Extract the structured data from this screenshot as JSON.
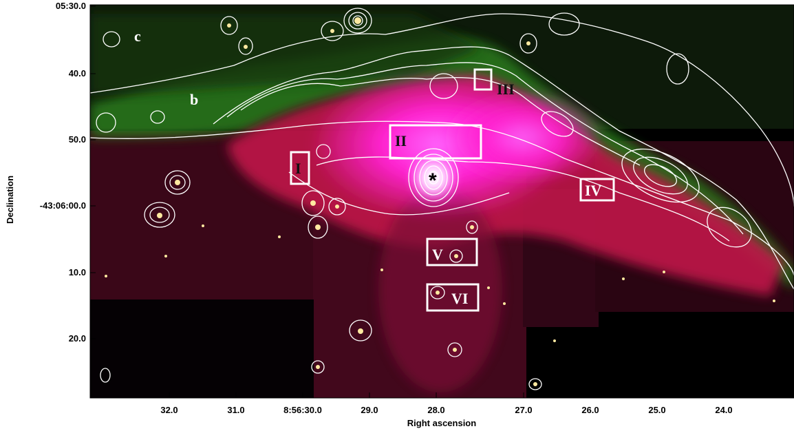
{
  "axes": {
    "xlabel": "Right ascension",
    "ylabel": "Declination",
    "x_ticks": [
      "32.0",
      "31.0",
      "8:56:30.0",
      "29.0",
      "28.0",
      "27.0",
      "26.0",
      "25.0",
      "24.0"
    ],
    "y_ticks": [
      "05:30.0",
      "40.0",
      "50.0",
      "-43:06:00.0",
      "10.0",
      "20.0"
    ]
  },
  "regions": [
    {
      "label": "I"
    },
    {
      "label": "II"
    },
    {
      "label": "III"
    },
    {
      "label": "IV"
    },
    {
      "label": "V"
    },
    {
      "label": "VI"
    }
  ],
  "features": {
    "b": "b",
    "c": "c",
    "star_marker": "*"
  },
  "colors": {
    "nebula_red": "#c0174a",
    "nebula_magenta": "#ff2bd6",
    "filament_green": "#3ea524",
    "contour": "#ffffff",
    "box_outline": "#ffffff",
    "region_text": "#111111"
  }
}
